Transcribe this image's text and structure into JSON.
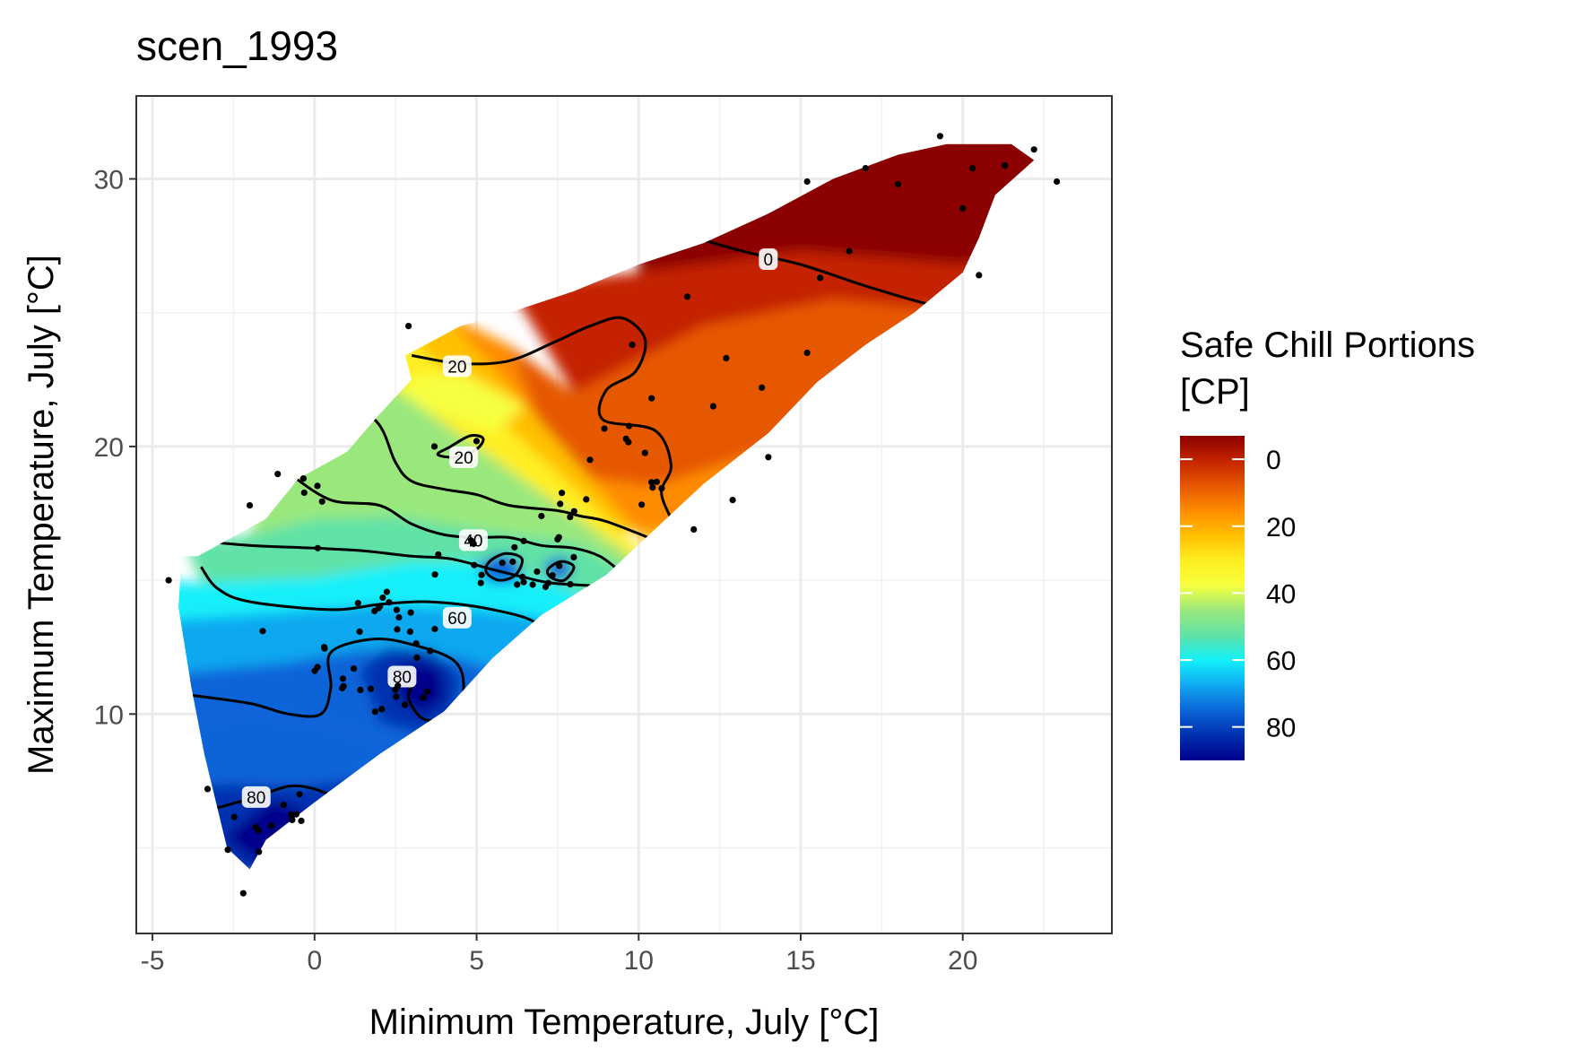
{
  "chart_data": {
    "type": "heatmap",
    "title": "scen_1993",
    "xlabel": "Minimum Temperature, July [°C]",
    "ylabel": "Maximum Temperature, July [°C]",
    "xlim": [
      -5.5,
      24.6
    ],
    "ylim": [
      1.8,
      33.1
    ],
    "x_ticks": [
      -5,
      0,
      5,
      10,
      15,
      20
    ],
    "y_ticks": [
      10,
      20,
      30
    ],
    "x_tick_labels": [
      "-5",
      "0",
      "5",
      "10",
      "15",
      "20"
    ],
    "y_tick_labels": [
      "10",
      "20",
      "30"
    ],
    "grid": true,
    "legend": {
      "title_lines": [
        "Safe Chill Portions",
        "[CP]"
      ],
      "position": "right",
      "range": [
        -7,
        90
      ],
      "ticks": [
        0,
        20,
        40,
        60,
        80
      ],
      "tick_labels": [
        "0",
        "20",
        "40",
        "60",
        "80"
      ]
    },
    "colors": [
      "#8b0000",
      "#c42400",
      "#e65800",
      "#ff8c00",
      "#ffc000",
      "#ffee20",
      "#f6ff40",
      "#9ae87d",
      "#60e2a6",
      "#12f0fa",
      "#10a8f0",
      "#0a64d8",
      "#0030b0",
      "#00008b"
    ],
    "region_polygon": [
      [
        -4.1,
        15.9
      ],
      [
        -3.6,
        15.9
      ],
      [
        -1.5,
        17.3
      ],
      [
        -0.5,
        18.8
      ],
      [
        1.0,
        19.8
      ],
      [
        2.0,
        21.2
      ],
      [
        3.0,
        22.5
      ],
      [
        2.8,
        23.4
      ],
      [
        4.5,
        24.5
      ],
      [
        6.0,
        25.0
      ],
      [
        8.0,
        25.8
      ],
      [
        10.0,
        26.8
      ],
      [
        12.0,
        27.6
      ],
      [
        14.0,
        28.7
      ],
      [
        16.0,
        30.0
      ],
      [
        18.0,
        30.9
      ],
      [
        19.5,
        31.3
      ],
      [
        21.5,
        31.3
      ],
      [
        22.2,
        30.7
      ],
      [
        21.0,
        29.4
      ],
      [
        20.5,
        27.8
      ],
      [
        20.0,
        26.5
      ],
      [
        18.5,
        25.0
      ],
      [
        17.0,
        23.8
      ],
      [
        15.5,
        22.4
      ],
      [
        14.0,
        20.5
      ],
      [
        12.0,
        18.6
      ],
      [
        10.5,
        16.9
      ],
      [
        9.0,
        15.2
      ],
      [
        7.0,
        13.7
      ],
      [
        5.5,
        12.1
      ],
      [
        4.0,
        10.1
      ],
      [
        2.0,
        8.5
      ],
      [
        0.0,
        6.7
      ],
      [
        -1.5,
        5.3
      ],
      [
        -2.0,
        4.2
      ],
      [
        -2.7,
        5.0
      ],
      [
        -3.4,
        8.5
      ],
      [
        -3.8,
        11.0
      ],
      [
        -4.2,
        14.0
      ]
    ],
    "contour_labels": [
      {
        "text": "0",
        "x": 14.0,
        "y": 27.0
      },
      {
        "text": "20",
        "x": 4.4,
        "y": 23.0
      },
      {
        "text": "20",
        "x": 4.6,
        "y": 19.6
      },
      {
        "text": "40",
        "x": 4.9,
        "y": 16.5
      },
      {
        "text": "60",
        "x": 4.4,
        "y": 13.6
      },
      {
        "text": "80",
        "x": 2.7,
        "y": 11.4
      },
      {
        "text": "80",
        "x": -1.8,
        "y": 6.9
      }
    ]
  }
}
